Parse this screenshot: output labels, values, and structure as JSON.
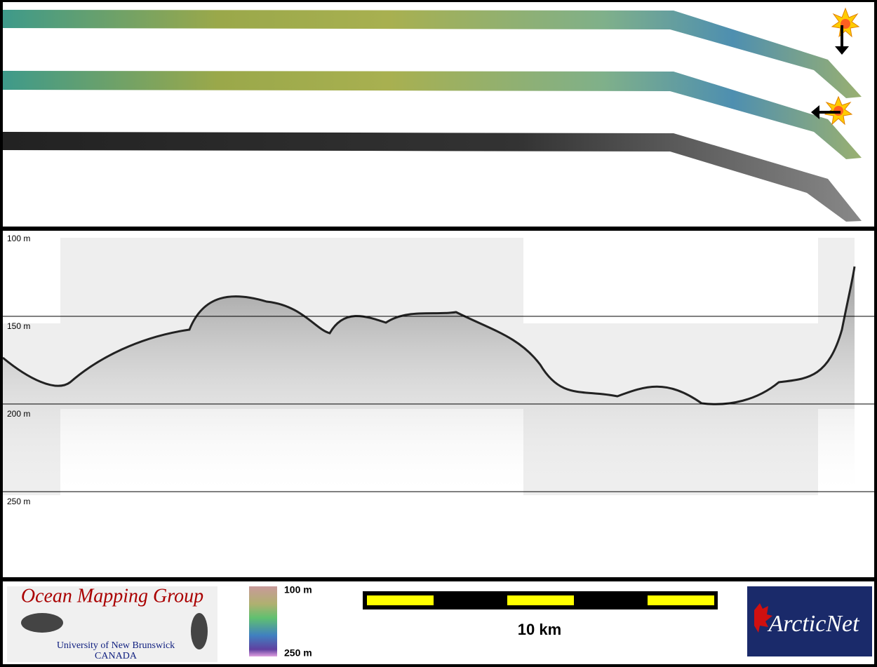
{
  "profile": {
    "depth_labels": [
      "100 m",
      "150 m",
      "200 m",
      "250 m"
    ]
  },
  "footer": {
    "logo_title": "Ocean Mapping Group",
    "logo_university": "University of New Brunswick",
    "logo_country": "CANADA",
    "colorbar_top": "100 m",
    "colorbar_bottom": "250 m",
    "scale_label": "10 km",
    "partner": "ArcticNet"
  }
}
